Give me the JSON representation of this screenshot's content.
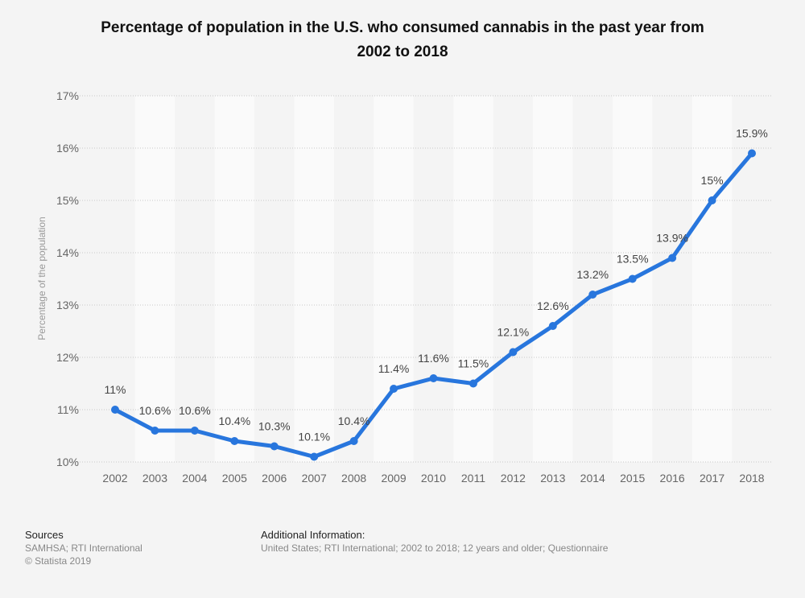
{
  "chart_data": {
    "type": "line",
    "title": "Percentage of population in the U.S. who consumed cannabis in the past year from 2002 to 2018",
    "xlabel": "",
    "ylabel": "Percentage of the population",
    "ylim": [
      10,
      17
    ],
    "yticks": [
      "10%",
      "11%",
      "12%",
      "13%",
      "14%",
      "15%",
      "16%",
      "17%"
    ],
    "ytick_values": [
      10,
      11,
      12,
      13,
      14,
      15,
      16,
      17
    ],
    "grid": true,
    "legend": "none",
    "categories": [
      "2002",
      "2003",
      "2004",
      "2005",
      "2006",
      "2007",
      "2008",
      "2009",
      "2010",
      "2011",
      "2012",
      "2013",
      "2014",
      "2015",
      "2016",
      "2017",
      "2018"
    ],
    "series": [
      {
        "name": "Percentage of population",
        "color": "#2876dd",
        "values": [
          11,
          10.6,
          10.6,
          10.4,
          10.3,
          10.1,
          10.4,
          11.4,
          11.6,
          11.5,
          12.1,
          12.6,
          13.2,
          13.5,
          13.9,
          15,
          15.9
        ],
        "labels": [
          "11%",
          "10.6%",
          "10.6%",
          "10.4%",
          "10.3%",
          "10.1%",
          "10.4%",
          "11.4%",
          "11.6%",
          "11.5%",
          "12.1%",
          "12.6%",
          "13.2%",
          "13.5%",
          "13.9%",
          "15%",
          "15.9%"
        ]
      }
    ]
  },
  "title_line1": "Percentage of population in the U.S. who consumed cannabis in the past year from",
  "title_line2": "2002 to 2018",
  "footer": {
    "sources_heading": "Sources",
    "sources_text": "SAMHSA; RTI International",
    "copyright": "© Statista 2019",
    "additional_heading": "Additional Information:",
    "additional_text": "United States; RTI International; 2002 to 2018; 12 years and older; Questionnaire"
  }
}
